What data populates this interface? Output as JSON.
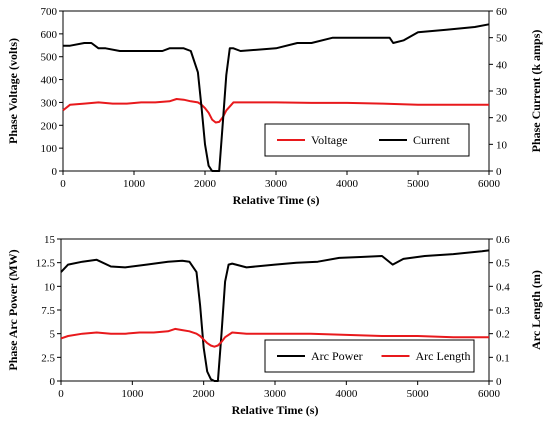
{
  "chart_data": [
    {
      "type": "line",
      "xlabel": "Relative Time (s)",
      "ylabel": "Phase Voltage (volts)",
      "ylabel_right": "Phase Current (k amps)",
      "xlim": [
        0,
        6000
      ],
      "ylim": [
        0,
        700
      ],
      "ylim_right": [
        0,
        60
      ],
      "x_ticks": [
        "0",
        "1000",
        "2000",
        "3000",
        "4000",
        "5000",
        "6000"
      ],
      "y_ticks": [
        "0",
        "100",
        "200",
        "300",
        "400",
        "500",
        "600",
        "700"
      ],
      "y_ticks_right": [
        "0",
        "10",
        "20",
        "30",
        "40",
        "50",
        "60"
      ],
      "grid": false,
      "legend_position": "lower-right",
      "series": [
        {
          "name": "Voltage",
          "axis": "left",
          "color": "#e8191c",
          "x": [
            0,
            100,
            300,
            500,
            700,
            900,
            1100,
            1300,
            1500,
            1600,
            1700,
            1800,
            1900,
            1950,
            2000,
            2050,
            2100,
            2150,
            2200,
            2250,
            2300,
            2400,
            2600,
            3000,
            3500,
            4000,
            4500,
            5000,
            5500,
            6000
          ],
          "y": [
            265,
            290,
            295,
            300,
            295,
            295,
            300,
            300,
            305,
            315,
            312,
            305,
            300,
            290,
            275,
            255,
            225,
            212,
            215,
            235,
            265,
            300,
            300,
            300,
            298,
            298,
            295,
            290,
            290,
            290
          ]
        },
        {
          "name": "Current",
          "axis": "right",
          "color": "#000000",
          "x": [
            0,
            100,
            300,
            400,
            500,
            600,
            800,
            1000,
            1200,
            1400,
            1500,
            1700,
            1800,
            1900,
            1950,
            2000,
            2050,
            2100,
            2150,
            2200,
            2250,
            2300,
            2350,
            2400,
            2500,
            3000,
            3300,
            3500,
            3800,
            4000,
            4300,
            4600,
            4650,
            4800,
            5000,
            5400,
            5800,
            6000
          ],
          "y": [
            47,
            47,
            48,
            48,
            46,
            46,
            45,
            45,
            45,
            45,
            46,
            46,
            45,
            37,
            24,
            10,
            2,
            0,
            0,
            0,
            18,
            36,
            46,
            46,
            45,
            46,
            48,
            48,
            50,
            50,
            50,
            50,
            48,
            49,
            52,
            53,
            54,
            55
          ]
        }
      ]
    },
    {
      "type": "line",
      "xlabel": "Relative Time (s)",
      "ylabel": "Phase Arc Power (MW)",
      "ylabel_right": "Arc Length (m)",
      "xlim": [
        0,
        6000
      ],
      "ylim": [
        0,
        15
      ],
      "ylim_right": [
        0,
        0.6
      ],
      "x_ticks": [
        "0",
        "1000",
        "2000",
        "3000",
        "4000",
        "5000",
        "6000"
      ],
      "y_ticks": [
        "0",
        "2.5",
        "5",
        "7.5",
        "10",
        "12.5",
        "15"
      ],
      "y_ticks_right": [
        "0",
        "0.1",
        "0.2",
        "0.3",
        "0.4",
        "0.5",
        "0.6"
      ],
      "grid": false,
      "legend_position": "lower-right",
      "series": [
        {
          "name": "Arc Power",
          "axis": "left",
          "color": "#000000",
          "x": [
            0,
            100,
            300,
            500,
            700,
            900,
            1200,
            1500,
            1700,
            1800,
            1900,
            1950,
            2000,
            2050,
            2100,
            2150,
            2200,
            2250,
            2300,
            2350,
            2400,
            2600,
            3000,
            3300,
            3600,
            3900,
            4200,
            4500,
            4650,
            4800,
            5100,
            5500,
            5900,
            6000
          ],
          "y": [
            11.5,
            12.3,
            12.6,
            12.8,
            12.1,
            12.0,
            12.3,
            12.6,
            12.7,
            12.6,
            11.5,
            8.0,
            3.5,
            1.0,
            0.2,
            0.0,
            0.0,
            5.0,
            10.5,
            12.3,
            12.4,
            12.0,
            12.3,
            12.5,
            12.6,
            13.0,
            13.1,
            13.2,
            12.3,
            12.9,
            13.2,
            13.4,
            13.7,
            13.8
          ]
        },
        {
          "name": "Arc Length",
          "axis": "right",
          "color": "#e8191c",
          "x": [
            0,
            100,
            300,
            500,
            700,
            900,
            1100,
            1300,
            1500,
            1600,
            1700,
            1800,
            1900,
            1950,
            2000,
            2050,
            2100,
            2150,
            2200,
            2250,
            2300,
            2400,
            2600,
            3000,
            3500,
            4000,
            4500,
            5000,
            5500,
            6000
          ],
          "y": [
            0.18,
            0.19,
            0.2,
            0.205,
            0.2,
            0.2,
            0.205,
            0.205,
            0.21,
            0.22,
            0.215,
            0.21,
            0.2,
            0.19,
            0.175,
            0.16,
            0.15,
            0.145,
            0.15,
            0.165,
            0.185,
            0.205,
            0.2,
            0.2,
            0.2,
            0.195,
            0.19,
            0.19,
            0.185,
            0.185
          ]
        }
      ]
    }
  ]
}
